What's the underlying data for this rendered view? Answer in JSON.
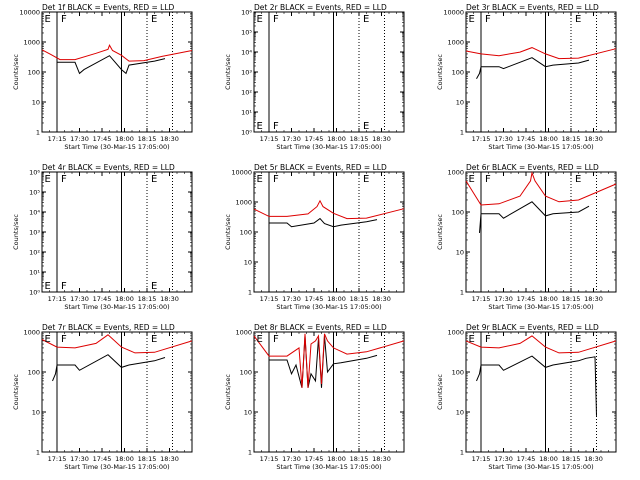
{
  "figure": {
    "background": "#ffffff",
    "events_color": "#000000",
    "lld_color": "#dd0000",
    "xlabel": "Start Time (30-Mar-15 17:05:00)",
    "ylabel": "Counts/sec",
    "x_ticks": [
      "17:15",
      "17:30",
      "17:45",
      "18:00",
      "18:15",
      "18:30"
    ],
    "x_tick_minutes": [
      10,
      25,
      40,
      55,
      70,
      85
    ],
    "xlim_minutes": [
      0,
      100
    ]
  },
  "chart_data": [
    {
      "type": "line",
      "title": "Det 1f BLACK = Events, RED = LLD",
      "yscale": "log",
      "ylim": [
        1,
        10000
      ],
      "y_ticks": [
        "1",
        "10",
        "100",
        "1000",
        "10000"
      ],
      "markers": [
        {
          "t": 1,
          "label": "E"
        },
        {
          "t": 12,
          "label": "F"
        },
        {
          "t": 72,
          "label": "E"
        }
      ],
      "vlines_solid": [
        10,
        53
      ],
      "vlines_dotted": [
        70,
        87
      ],
      "series": [
        {
          "color": "#000000",
          "points": [
            [
              10,
              210
            ],
            [
              22,
              210
            ],
            [
              25,
              90
            ],
            [
              28,
              120
            ],
            [
              45,
              350
            ],
            [
              53,
              120
            ],
            [
              56,
              90
            ],
            [
              58,
              170
            ],
            [
              75,
              230
            ],
            [
              82,
              280
            ]
          ]
        },
        {
          "color": "#dd0000",
          "points": [
            [
              0,
              550
            ],
            [
              6,
              380
            ],
            [
              12,
              260
            ],
            [
              22,
              260
            ],
            [
              36,
              420
            ],
            [
              44,
              570
            ],
            [
              45,
              780
            ],
            [
              47,
              520
            ],
            [
              53,
              360
            ],
            [
              58,
              230
            ],
            [
              68,
              240
            ],
            [
              80,
              330
            ],
            [
              100,
              520
            ]
          ]
        }
      ]
    },
    {
      "type": "line",
      "title": "Det 2r BLACK = Events, RED = LLD",
      "yscale": "log",
      "ylim": [
        1,
        1000000
      ],
      "y_ticks": [
        "10⁰",
        "10¹",
        "10²",
        "10³",
        "10⁴",
        "10⁵",
        "10⁶"
      ],
      "markers": [
        {
          "t": 1,
          "label": "E"
        },
        {
          "t": 12,
          "label": "F"
        },
        {
          "t": 72,
          "label": "E"
        }
      ],
      "vlines_solid": [
        10,
        53
      ],
      "vlines_dotted": [
        70,
        87
      ],
      "series": []
    },
    {
      "type": "line",
      "title": "Det 3r BLACK = Events, RED = LLD",
      "yscale": "log",
      "ylim": [
        1,
        10000
      ],
      "y_ticks": [
        "1",
        "10",
        "100",
        "1000",
        "10000"
      ],
      "markers": [
        {
          "t": 1,
          "label": "E"
        },
        {
          "t": 12,
          "label": "F"
        },
        {
          "t": 72,
          "label": "E"
        }
      ],
      "vlines_solid": [
        10,
        53
      ],
      "vlines_dotted": [
        70,
        87
      ],
      "series": [
        {
          "color": "#000000",
          "points": [
            [
              7,
              60
            ],
            [
              9,
              90
            ],
            [
              10,
              150
            ],
            [
              22,
              150
            ],
            [
              25,
              130
            ],
            [
              44,
              300
            ],
            [
              53,
              150
            ],
            [
              58,
              170
            ],
            [
              75,
              200
            ],
            [
              82,
              250
            ]
          ]
        },
        {
          "color": "#dd0000",
          "points": [
            [
              0,
              500
            ],
            [
              10,
              400
            ],
            [
              22,
              350
            ],
            [
              36,
              460
            ],
            [
              44,
              650
            ],
            [
              53,
              400
            ],
            [
              62,
              280
            ],
            [
              75,
              290
            ],
            [
              100,
              600
            ]
          ]
        }
      ]
    },
    {
      "type": "line",
      "title": "Det 4r BLACK = Events, RED = LLD",
      "yscale": "log",
      "ylim": [
        1,
        1000000
      ],
      "y_ticks": [
        "10⁰",
        "10¹",
        "10²",
        "10³",
        "10⁴",
        "10⁵",
        "10⁶"
      ],
      "markers": [
        {
          "t": 1,
          "label": "E"
        },
        {
          "t": 12,
          "label": "F"
        },
        {
          "t": 72,
          "label": "E"
        }
      ],
      "vlines_solid": [
        10,
        53
      ],
      "vlines_dotted": [
        70,
        87
      ],
      "series": []
    },
    {
      "type": "line",
      "title": "Det 5r BLACK = Events, RED = LLD",
      "yscale": "log",
      "ylim": [
        1,
        10000
      ],
      "y_ticks": [
        "1",
        "10",
        "100",
        "1000",
        "10000"
      ],
      "markers": [
        {
          "t": 1,
          "label": "E"
        },
        {
          "t": 12,
          "label": "F"
        },
        {
          "t": 72,
          "label": "E"
        }
      ],
      "vlines_solid": [
        10,
        53
      ],
      "vlines_dotted": [
        70,
        87
      ],
      "series": [
        {
          "color": "#000000",
          "points": [
            [
              10,
              200
            ],
            [
              22,
              200
            ],
            [
              25,
              150
            ],
            [
              40,
              200
            ],
            [
              44,
              280
            ],
            [
              47,
              190
            ],
            [
              53,
              150
            ],
            [
              58,
              170
            ],
            [
              75,
              220
            ],
            [
              82,
              260
            ]
          ]
        },
        {
          "color": "#dd0000",
          "points": [
            [
              0,
              580
            ],
            [
              10,
              330
            ],
            [
              22,
              330
            ],
            [
              36,
              400
            ],
            [
              42,
              700
            ],
            [
              44,
              1100
            ],
            [
              46,
              700
            ],
            [
              53,
              420
            ],
            [
              62,
              280
            ],
            [
              75,
              290
            ],
            [
              100,
              600
            ]
          ]
        }
      ]
    },
    {
      "type": "line",
      "title": "Det 6r BLACK = Events, RED = LLD",
      "yscale": "log",
      "ylim": [
        1,
        1000
      ],
      "y_ticks": [
        "1",
        "10",
        "100",
        "1000"
      ],
      "markers": [
        {
          "t": 1,
          "label": "E"
        },
        {
          "t": 12,
          "label": "F"
        },
        {
          "t": 72,
          "label": "E"
        }
      ],
      "vlines_solid": [
        10,
        53
      ],
      "vlines_dotted": [
        70,
        87
      ],
      "series": [
        {
          "color": "#000000",
          "points": [
            [
              9,
              30
            ],
            [
              10,
              90
            ],
            [
              22,
              90
            ],
            [
              25,
              70
            ],
            [
              44,
              180
            ],
            [
              53,
              80
            ],
            [
              58,
              90
            ],
            [
              75,
              100
            ],
            [
              82,
              140
            ]
          ]
        },
        {
          "color": "#dd0000",
          "points": [
            [
              0,
              600
            ],
            [
              10,
              150
            ],
            [
              22,
              160
            ],
            [
              36,
              250
            ],
            [
              43,
              600
            ],
            [
              44,
              950
            ],
            [
              46,
              600
            ],
            [
              53,
              250
            ],
            [
              62,
              180
            ],
            [
              75,
              200
            ],
            [
              100,
              500
            ]
          ]
        }
      ]
    },
    {
      "type": "line",
      "title": "Det 7r BLACK = Events, RED = LLD",
      "yscale": "log",
      "ylim": [
        1,
        1000
      ],
      "y_ticks": [
        "1",
        "10",
        "100",
        "1000"
      ],
      "markers": [
        {
          "t": 1,
          "label": "E"
        },
        {
          "t": 12,
          "label": "F"
        },
        {
          "t": 72,
          "label": "E"
        }
      ],
      "vlines_solid": [
        10,
        53
      ],
      "vlines_dotted": [
        70,
        87
      ],
      "series": [
        {
          "color": "#000000",
          "points": [
            [
              7,
              60
            ],
            [
              9,
              90
            ],
            [
              10,
              150
            ],
            [
              22,
              150
            ],
            [
              25,
              110
            ],
            [
              44,
              270
            ],
            [
              53,
              130
            ],
            [
              58,
              150
            ],
            [
              75,
              190
            ],
            [
              82,
              230
            ]
          ]
        },
        {
          "color": "#dd0000",
          "points": [
            [
              0,
              650
            ],
            [
              10,
              420
            ],
            [
              22,
              400
            ],
            [
              36,
              520
            ],
            [
              44,
              850
            ],
            [
              53,
              420
            ],
            [
              62,
              300
            ],
            [
              75,
              310
            ],
            [
              100,
              600
            ]
          ]
        }
      ]
    },
    {
      "type": "line",
      "title": "Det 8r BLACK = Events, RED = LLD",
      "yscale": "log",
      "ylim": [
        1,
        1000
      ],
      "y_ticks": [
        "1",
        "10",
        "100",
        "1000"
      ],
      "markers": [
        {
          "t": 1,
          "label": "E"
        },
        {
          "t": 12,
          "label": "F"
        },
        {
          "t": 72,
          "label": "E"
        }
      ],
      "vlines_solid": [
        10,
        53
      ],
      "vlines_dotted": [
        70,
        87
      ],
      "series": [
        {
          "color": "#000000",
          "points": [
            [
              10,
              200
            ],
            [
              22,
              200
            ],
            [
              25,
              90
            ],
            [
              28,
              150
            ],
            [
              32,
              40
            ],
            [
              34,
              800
            ],
            [
              36,
              40
            ],
            [
              38,
              90
            ],
            [
              41,
              60
            ],
            [
              43,
              700
            ],
            [
              45,
              40
            ],
            [
              47,
              800
            ],
            [
              49,
              100
            ],
            [
              53,
              160
            ],
            [
              58,
              170
            ],
            [
              75,
              220
            ],
            [
              82,
              260
            ]
          ]
        },
        {
          "color": "#dd0000",
          "points": [
            [
              0,
              800
            ],
            [
              10,
              250
            ],
            [
              22,
              250
            ],
            [
              30,
              400
            ],
            [
              32,
              40
            ],
            [
              34,
              900
            ],
            [
              36,
              40
            ],
            [
              38,
              500
            ],
            [
              41,
              600
            ],
            [
              43,
              800
            ],
            [
              45,
              50
            ],
            [
              47,
              900
            ],
            [
              49,
              600
            ],
            [
              53,
              400
            ],
            [
              62,
              280
            ],
            [
              75,
              320
            ],
            [
              100,
              600
            ]
          ]
        }
      ]
    },
    {
      "type": "line",
      "title": "Det 9r BLACK = Events, RED = LLD",
      "yscale": "log",
      "ylim": [
        1,
        1000
      ],
      "y_ticks": [
        "1",
        "10",
        "100",
        "1000"
      ],
      "markers": [
        {
          "t": 1,
          "label": "E"
        },
        {
          "t": 12,
          "label": "F"
        },
        {
          "t": 72,
          "label": "E"
        }
      ],
      "vlines_solid": [
        10,
        53
      ],
      "vlines_dotted": [
        70,
        87
      ],
      "series": [
        {
          "color": "#000000",
          "points": [
            [
              7,
              60
            ],
            [
              9,
              90
            ],
            [
              10,
              150
            ],
            [
              22,
              150
            ],
            [
              25,
              110
            ],
            [
              44,
              250
            ],
            [
              53,
              130
            ],
            [
              58,
              150
            ],
            [
              75,
              190
            ],
            [
              80,
              220
            ],
            [
              86,
              240
            ],
            [
              87,
              8
            ]
          ]
        },
        {
          "color": "#dd0000",
          "points": [
            [
              0,
              600
            ],
            [
              10,
              420
            ],
            [
              22,
              400
            ],
            [
              36,
              520
            ],
            [
              44,
              800
            ],
            [
              53,
              420
            ],
            [
              62,
              300
            ],
            [
              75,
              310
            ],
            [
              100,
              600
            ]
          ]
        }
      ]
    }
  ]
}
